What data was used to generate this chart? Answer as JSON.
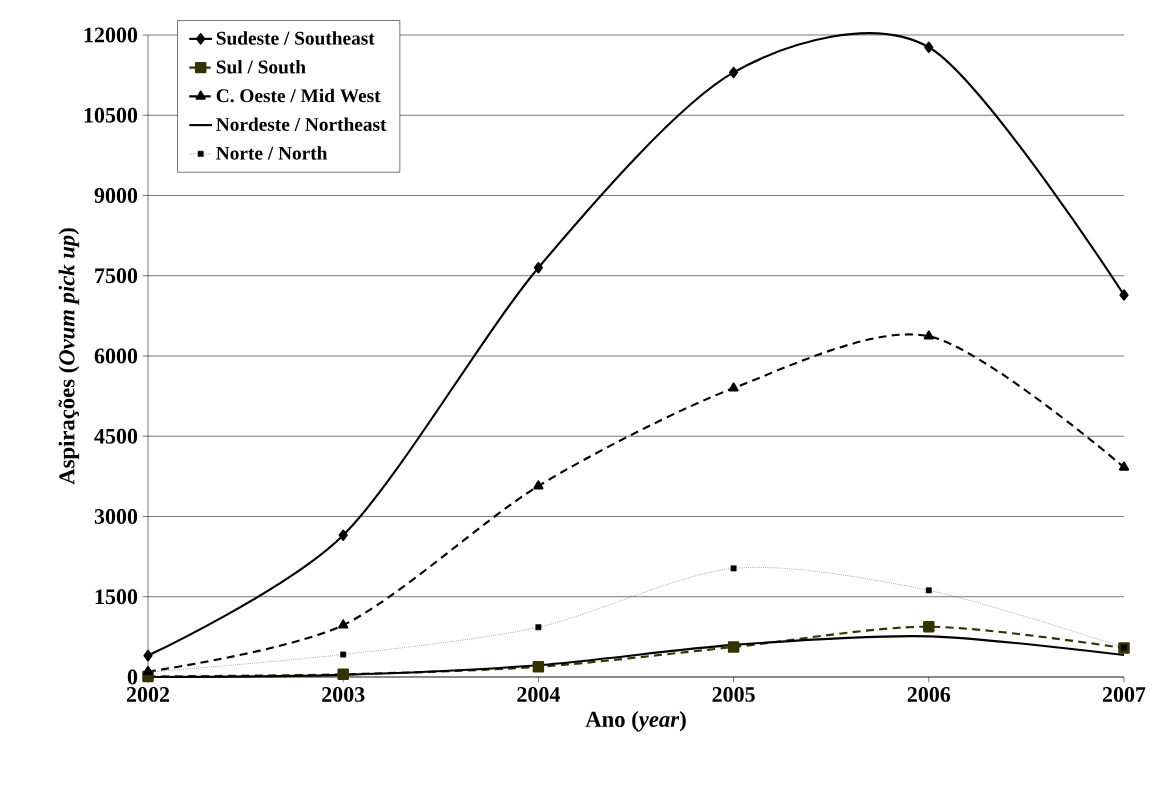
{
  "chart_data": {
    "type": "line",
    "xlabel": "Ano (*year*)",
    "ylabel": "Aspirações (*Ovum pick up*)",
    "x": [
      2002,
      2003,
      2004,
      2005,
      2006,
      2007
    ],
    "xlim": [
      2002,
      2007
    ],
    "xticks": [
      2002,
      2003,
      2004,
      2005,
      2006,
      2007
    ],
    "ylim": [
      0,
      12000
    ],
    "yticks": [
      0,
      1500,
      3000,
      4500,
      6000,
      7500,
      9000,
      10500,
      12000
    ],
    "grid": "y",
    "legend": "top left",
    "series": [
      {
        "name": "Sudeste / Southeast",
        "color": "#000000",
        "marker": "diamond",
        "line_style": "solid",
        "values": [
          400,
          2650,
          7650,
          11300,
          11770,
          7140
        ]
      },
      {
        "name": "Sul / South",
        "color": "#333300",
        "marker": "square",
        "line_style": "dashed",
        "values": [
          10,
          50,
          190,
          560,
          940,
          540
        ]
      },
      {
        "name": "C. Oeste / Mid West",
        "color": "#000000",
        "marker": "triangle",
        "line_style": "dashed",
        "values": [
          100,
          970,
          3570,
          5400,
          6370,
          3920
        ]
      },
      {
        "name": "Nordeste / Northeast",
        "color": "#000000",
        "marker": "none",
        "line_style": "solid",
        "values": [
          0,
          40,
          220,
          600,
          760,
          410
        ]
      },
      {
        "name": "Norte / North",
        "color": "#000000",
        "marker": "square",
        "line_style": "dotted",
        "values": [
          90,
          420,
          930,
          2030,
          1620,
          550
        ]
      }
    ]
  }
}
